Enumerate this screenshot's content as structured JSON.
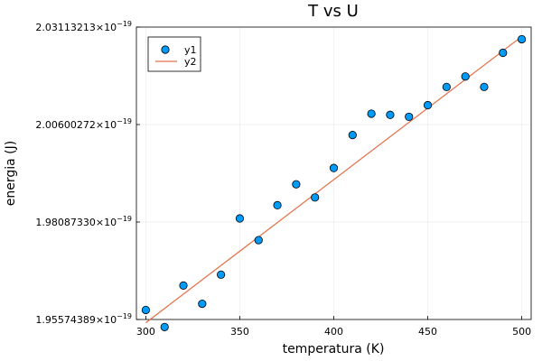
{
  "chart_data": {
    "type": "scatter",
    "title": "T vs U",
    "xlabel": "temperatura (K)",
    "ylabel": "energia (J)",
    "xlim": [
      295,
      505
    ],
    "ylim": [
      1.95574389e-19,
      2.03113213e-19
    ],
    "x_ticks": [
      {
        "value": 300,
        "label": "300"
      },
      {
        "value": 350,
        "label": "350"
      },
      {
        "value": 400,
        "label": "400"
      },
      {
        "value": 450,
        "label": "450"
      },
      {
        "value": 500,
        "label": "500"
      }
    ],
    "y_ticks": [
      {
        "value": 1.95574389e-19,
        "mantissa": "1.95574389",
        "exp": "−19"
      },
      {
        "value": 1.9808733e-19,
        "mantissa": "1.98087330",
        "exp": "−19"
      },
      {
        "value": 2.00600272e-19,
        "mantissa": "2.00600272",
        "exp": "−19"
      },
      {
        "value": 2.03113213e-19,
        "mantissa": "2.03113213",
        "exp": "−19"
      }
    ],
    "grid": true,
    "legend_position": "top-left",
    "series": [
      {
        "name": "y1",
        "kind": "scatter",
        "color": "#009af9",
        "x": [
          300,
          310,
          320,
          330,
          340,
          350,
          360,
          370,
          380,
          390,
          400,
          410,
          420,
          430,
          440,
          450,
          460,
          470,
          480,
          490,
          500
        ],
        "y": [
          1.9582e-19,
          1.9538e-19,
          1.9645e-19,
          1.9598e-19,
          1.9673e-19,
          1.9818e-19,
          1.9762e-19,
          1.9852e-19,
          1.9906e-19,
          1.9872e-19,
          1.9948e-19,
          2.0033e-19,
          2.0088e-19,
          2.0085e-19,
          2.008e-19,
          2.011e-19,
          2.0157e-19,
          2.0184e-19,
          2.0157e-19,
          2.0245e-19,
          2.028e-19
        ]
      },
      {
        "name": "y2",
        "kind": "line",
        "color": "#e26f46",
        "x": [
          300,
          500
        ],
        "y": [
          1.9549e-19,
          2.0287e-19
        ]
      }
    ]
  }
}
